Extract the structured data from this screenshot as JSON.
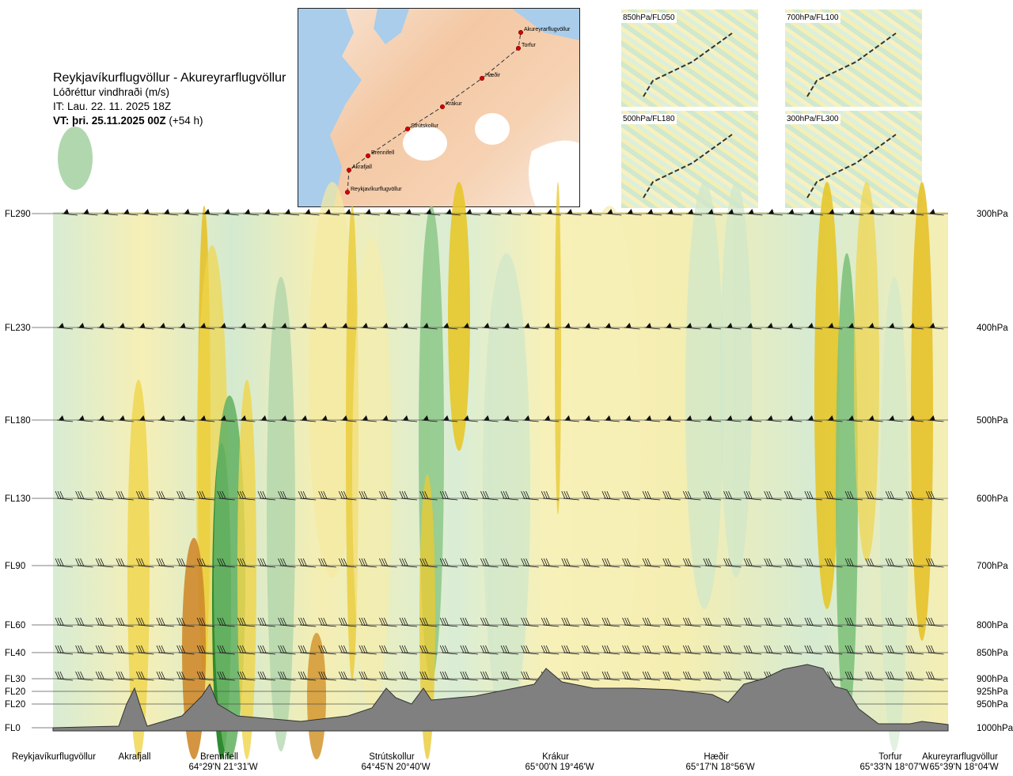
{
  "header": {
    "title": "Reykjavíkurflugvöllur - Akureyrarflugvöllur",
    "subtitle": "Lóðréttur vindhraði (m/s)",
    "issue_time": "IT: Lau. 22. 11. 2025 18Z",
    "valid_time_bold": "VT: þri. 25.11.2025 00Z",
    "valid_time_rest": " (+54 h)"
  },
  "map": {
    "waypoints": [
      "Akureyrarflugvöllur",
      "Torfur",
      "Hæðir",
      "Krákur",
      "Strútskollur",
      "Brennifell",
      "Akrafjall",
      "Reykjavíkurflugvöllur"
    ],
    "colors": {
      "route": "#d40000",
      "sea": "#a9cdeb",
      "ice": "#ffffff",
      "land": "#f4c8a4"
    }
  },
  "mini_maps": [
    {
      "label": "850hPa/FL050"
    },
    {
      "label": "700hPa/FL100"
    },
    {
      "label": "500hPa/FL180"
    },
    {
      "label": "300hPa/FL300"
    }
  ],
  "chart_data": {
    "type": "heatmap",
    "title": "Lóðréttur vindhraði (m/s)",
    "y_left_labels": [
      "FL290",
      "FL230",
      "FL180",
      "FL130",
      "FL90",
      "FL60",
      "FL40",
      "FL30",
      "FL20",
      "FL20",
      "FL0"
    ],
    "y_right_labels": [
      "300hPa",
      "400hPa",
      "500hPa",
      "600hPa",
      "700hPa",
      "800hPa",
      "850hPa",
      "900hPa",
      "925hPa",
      "950hPa",
      "1000hPa"
    ],
    "pressure_levels_hpa": [
      300,
      400,
      500,
      600,
      700,
      800,
      850,
      900,
      925,
      950,
      1000
    ],
    "x_positions_along_route": [
      0.0,
      0.09,
      0.19,
      0.38,
      0.57,
      0.75,
      0.96,
      1.0
    ],
    "x_waypoints": [
      {
        "name": "Reykjavíkurflugvöllur",
        "coord": ""
      },
      {
        "name": "Akrafjall",
        "coord": ""
      },
      {
        "name": "Brennifell",
        "coord": "64°29'N 21°31'W"
      },
      {
        "name": "Strútskollur",
        "coord": "64°45'N 20°40'W"
      },
      {
        "name": "Krákur",
        "coord": "65°00'N 19°46'W"
      },
      {
        "name": "Hæðir",
        "coord": "65°17'N 18°56'W"
      },
      {
        "name": "Torfur",
        "coord": "65°33'N 18°07'W"
      },
      {
        "name": "Akureyrarflugvöllur",
        "coord": "65°39'N 18°04'W"
      }
    ],
    "colors": {
      "positive": "#f1e37a",
      "strong_positive": "#e0c020",
      "downdraft": "#bfe0bd",
      "strong_downdraft": "#2e8b2e",
      "terrain": "#7f7f7f"
    }
  }
}
